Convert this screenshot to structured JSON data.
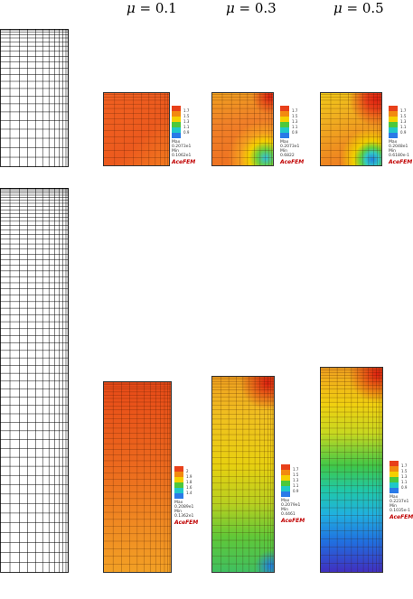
{
  "headers": [
    {
      "sym": "μ",
      "rest": " = 0.1"
    },
    {
      "sym": "μ",
      "rest": " = 0.3"
    },
    {
      "sym": "μ",
      "rest": " = 0.5"
    }
  ],
  "top_row": [
    {
      "ticks": [
        "1.7",
        "1.5",
        "1.3",
        "1.1",
        "0.9"
      ],
      "max_label": "Max",
      "max": "0.2073e1",
      "min_label": "Min",
      "min": "0.1062e1",
      "brand": "AceFEM"
    },
    {
      "ticks": [
        "1.7",
        "1.5",
        "1.3",
        "1.1",
        "0.9"
      ],
      "max_label": "Max",
      "max": "0.2073e1",
      "min_label": "Min",
      "min": "0.6822",
      "brand": "AceFEM"
    },
    {
      "ticks": [
        "1.7",
        "1.5",
        "1.3",
        "1.1",
        "0.9"
      ],
      "max_label": "Max",
      "max": "0.2048e1",
      "min_label": "Min",
      "min": "0.6180e-1",
      "brand": "AceFEM"
    }
  ],
  "bottom_row": [
    {
      "ticks": [
        "2",
        "1.9",
        "1.8",
        "1.6",
        "1.4"
      ],
      "max_label": "Max",
      "max": "0.2089e1",
      "min_label": "Min",
      "min": "0.1362e1",
      "brand": "AceFEM"
    },
    {
      "ticks": [
        "1.7",
        "1.5",
        "1.3",
        "1.1",
        "0.9"
      ],
      "max_label": "Max",
      "max": "0.2079e1",
      "min_label": "Min",
      "min": "0.4461",
      "brand": "AceFEM"
    },
    {
      "ticks": [
        "1.7",
        "1.5",
        "1.3",
        "1.1",
        "0.9"
      ],
      "max_label": "Max",
      "max": "0.2237e1",
      "min_label": "Min",
      "min": "0.1035e-1",
      "brand": "AceFEM"
    }
  ],
  "colors": {
    "scale": [
      "#e8401a",
      "#f28a10",
      "#f5d000",
      "#4cc83c",
      "#20c8c8",
      "#2a7ae8"
    ]
  }
}
